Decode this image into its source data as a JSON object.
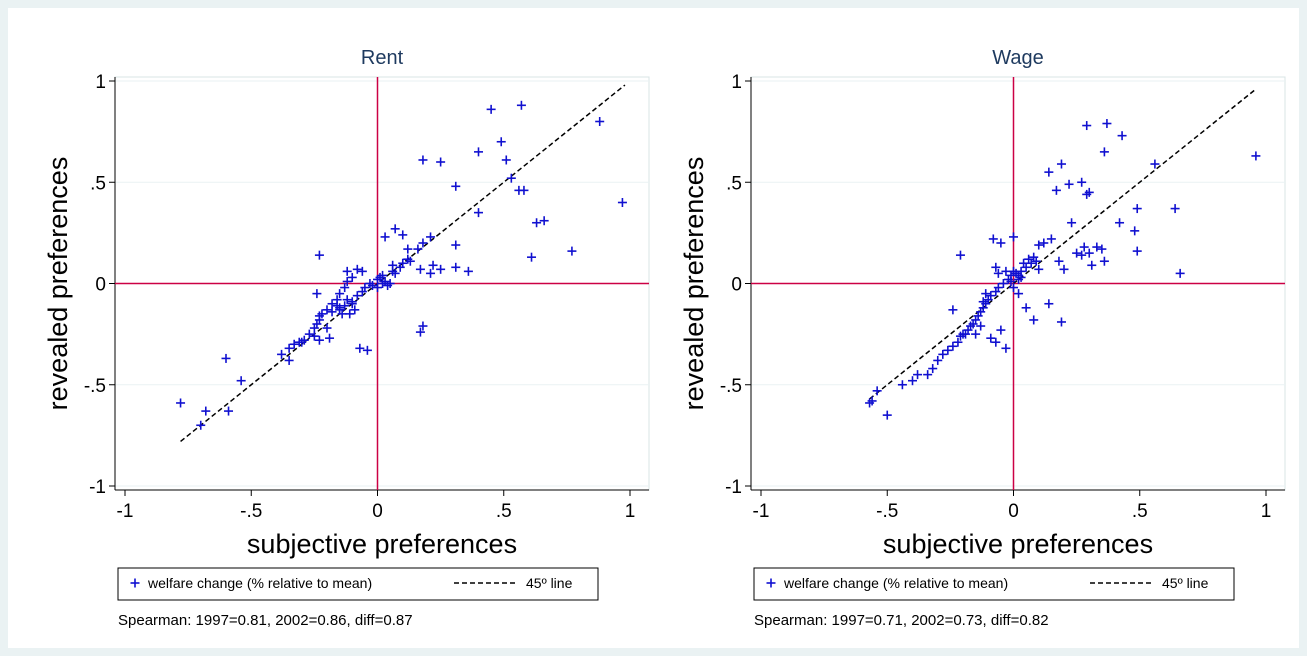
{
  "chart_data": [
    {
      "type": "scatter",
      "title": "Rent",
      "xlabel": "subjective preferences",
      "ylabel": "revealed preferences",
      "xlim": [
        -1,
        1
      ],
      "ylim": [
        -1,
        1
      ],
      "xticks": [
        "-1",
        "-.5",
        "0",
        ".5",
        "1"
      ],
      "yticks": [
        "-1",
        "-.5",
        "0",
        ".5",
        "1"
      ],
      "grid": true,
      "reference_lines": {
        "x": 0,
        "y": 0,
        "color": "#cc0044"
      },
      "line_45": {
        "x": [
          -0.78,
          0.98
        ],
        "y": [
          -0.78,
          0.98
        ],
        "style": "dashed"
      },
      "legend": {
        "scatter_label": "welfare change (% relative to mean)",
        "line_label": "45º line",
        "position": "bottom"
      },
      "note": "Spearman: 1997=0.81, 2002=0.86, diff=0.87",
      "series": [
        {
          "name": "welfare change (% relative to mean)",
          "color": "#1010d0",
          "marker": "plus",
          "x": [
            0.45,
            0.57,
            0.88,
            0.49,
            0.51,
            0.18,
            0.25,
            0.4,
            0.31,
            0.53,
            0.56,
            0.58,
            0.97,
            0.63,
            0.66,
            0.77,
            0.61,
            0.4,
            0.31,
            0.21,
            0.18,
            0.16,
            0.12,
            0.1,
            0.06,
            0.06,
            0.02,
            0.0,
            0.05,
            0.07,
            0.09,
            0.04,
            0.03,
            0.01,
            0.0,
            -0.02,
            -0.03,
            -0.05,
            0.03,
            0.13,
            0.17,
            0.21,
            0.22,
            0.25,
            0.31,
            0.36,
            0.18,
            0.17,
            -0.06,
            -0.08,
            -0.1,
            -0.12,
            -0.15,
            -0.16,
            -0.18,
            -0.2,
            -0.22,
            -0.23,
            -0.24,
            -0.25,
            -0.27,
            -0.29,
            -0.31,
            -0.33,
            -0.35,
            -0.38,
            -0.2,
            -0.24,
            -0.15,
            -0.1,
            -0.12,
            -0.14,
            -0.19,
            -0.23,
            -0.09,
            -0.11,
            -0.07,
            -0.04,
            -0.13,
            -0.1,
            -0.08,
            -0.06,
            -0.13,
            -0.12,
            -0.15,
            -0.16,
            -0.18,
            -0.23,
            -0.25,
            -0.3,
            -0.35,
            -0.6,
            -0.54,
            -0.59,
            -0.7,
            -0.68,
            -0.78,
            -0.23,
            0.1,
            0.12,
            0.07,
            0.02
          ],
          "y": [
            0.86,
            0.88,
            0.8,
            0.7,
            0.61,
            0.61,
            0.6,
            0.65,
            0.48,
            0.52,
            0.46,
            0.46,
            0.4,
            0.3,
            0.31,
            0.16,
            0.13,
            0.35,
            0.19,
            0.23,
            0.2,
            0.17,
            0.12,
            0.1,
            0.09,
            0.06,
            0.04,
            0.02,
            0.0,
            0.05,
            0.08,
            -0.01,
            0.01,
            0.03,
            -0.02,
            -0.01,
            0.0,
            -0.02,
            0.23,
            0.11,
            0.07,
            0.05,
            0.09,
            0.07,
            0.08,
            0.06,
            -0.21,
            -0.24,
            0.06,
            0.07,
            0.03,
            0.06,
            -0.05,
            -0.08,
            -0.1,
            -0.13,
            -0.15,
            -0.18,
            -0.2,
            -0.22,
            -0.25,
            -0.28,
            -0.29,
            -0.3,
            -0.32,
            -0.35,
            -0.22,
            -0.05,
            -0.12,
            -0.1,
            -0.08,
            -0.15,
            -0.27,
            -0.28,
            -0.13,
            -0.15,
            -0.32,
            -0.33,
            -0.11,
            -0.09,
            -0.06,
            -0.04,
            -0.02,
            0.01,
            -0.13,
            -0.11,
            -0.14,
            -0.16,
            -0.26,
            -0.29,
            -0.38,
            -0.37,
            -0.48,
            -0.63,
            -0.7,
            -0.63,
            -0.59,
            0.14,
            0.24,
            0.17,
            0.27,
            0.0
          ]
        }
      ]
    },
    {
      "type": "scatter",
      "title": "Wage",
      "xlabel": "subjective preferences",
      "ylabel": "revealed preferences",
      "xlim": [
        -1,
        1
      ],
      "ylim": [
        -1,
        1
      ],
      "xticks": [
        "-1",
        "-.5",
        "0",
        ".5",
        "1"
      ],
      "yticks": [
        "-1",
        "-.5",
        "0",
        ".5",
        "1"
      ],
      "grid": true,
      "reference_lines": {
        "x": 0,
        "y": 0,
        "color": "#cc0044"
      },
      "line_45": {
        "x": [
          -0.57,
          0.96
        ],
        "y": [
          -0.57,
          0.96
        ],
        "style": "dashed"
      },
      "legend": {
        "scatter_label": "welfare change (% relative to mean)",
        "line_label": "45º line",
        "position": "bottom"
      },
      "note": "Spearman: 1997=0.71, 2002=0.73, diff=0.82",
      "series": [
        {
          "name": "welfare change (% relative to mean)",
          "color": "#1010d0",
          "marker": "plus",
          "x": [
            0.29,
            0.37,
            0.43,
            0.36,
            0.56,
            0.96,
            0.64,
            0.66,
            0.14,
            0.19,
            0.22,
            0.27,
            0.29,
            0.3,
            0.49,
            0.48,
            0.42,
            0.35,
            0.25,
            0.17,
            0.23,
            0.28,
            0.33,
            0.36,
            0.49,
            0.15,
            0.12,
            0.1,
            0.07,
            0.05,
            0.03,
            0.01,
            -0.01,
            -0.02,
            -0.04,
            -0.06,
            -0.07,
            -0.09,
            -0.1,
            -0.11,
            -0.12,
            -0.13,
            -0.14,
            -0.15,
            -0.16,
            -0.17,
            -0.18,
            -0.19,
            -0.2,
            -0.21,
            -0.22,
            -0.24,
            -0.26,
            -0.28,
            -0.3,
            -0.32,
            -0.34,
            -0.38,
            -0.4,
            -0.44,
            -0.5,
            -0.54,
            -0.56,
            -0.57,
            -0.05,
            -0.08,
            0.0,
            0.02,
            0.04,
            0.06,
            0.08,
            0.09,
            0.1,
            0.18,
            0.2,
            0.27,
            0.3,
            0.31,
            0.19,
            0.14,
            0.08,
            0.05,
            -0.03,
            -0.05,
            -0.09,
            -0.11,
            -0.12,
            -0.13,
            -0.15,
            -0.21,
            -0.24,
            -0.01,
            0.0,
            -0.03,
            0.02,
            -0.06,
            -0.07,
            0.0,
            0.03,
            -0.07,
            0.02
          ],
          "y": [
            0.78,
            0.79,
            0.73,
            0.65,
            0.59,
            0.63,
            0.37,
            0.05,
            0.55,
            0.59,
            0.49,
            0.5,
            0.44,
            0.45,
            0.37,
            0.26,
            0.3,
            0.17,
            0.15,
            0.46,
            0.3,
            0.18,
            0.18,
            0.11,
            0.16,
            0.22,
            0.2,
            0.19,
            0.1,
            0.08,
            0.06,
            0.05,
            0.04,
            0.02,
            0.0,
            -0.02,
            -0.04,
            -0.06,
            -0.08,
            -0.1,
            -0.12,
            -0.14,
            -0.16,
            -0.18,
            -0.2,
            -0.21,
            -0.23,
            -0.25,
            -0.25,
            -0.26,
            -0.29,
            -0.31,
            -0.33,
            -0.35,
            -0.38,
            -0.42,
            -0.45,
            -0.45,
            -0.48,
            -0.5,
            -0.65,
            -0.53,
            -0.58,
            -0.59,
            0.2,
            0.22,
            0.23,
            0.04,
            0.1,
            0.12,
            0.13,
            0.11,
            0.07,
            0.11,
            0.07,
            0.14,
            0.15,
            0.09,
            -0.19,
            -0.1,
            -0.18,
            -0.12,
            -0.32,
            -0.23,
            -0.27,
            -0.05,
            -0.09,
            -0.21,
            -0.25,
            0.14,
            -0.13,
            0.01,
            -0.02,
            0.06,
            0.02,
            0.05,
            0.08,
            0.06,
            0.03,
            -0.29,
            -0.05
          ]
        }
      ]
    }
  ]
}
